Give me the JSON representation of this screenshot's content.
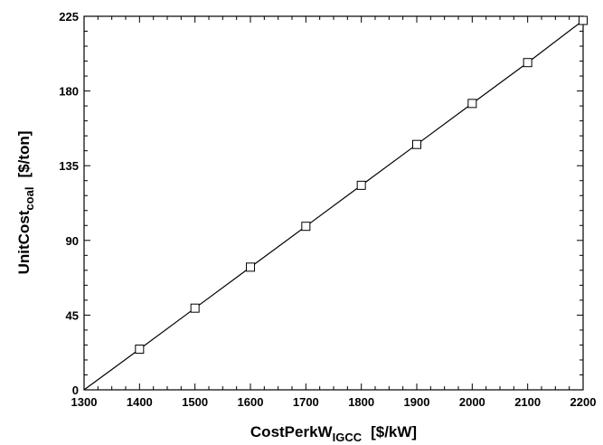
{
  "chart_data": {
    "type": "line",
    "xlabel": "CostPerkW",
    "xlabel_subscript": "IGCC",
    "xlabel_units": "[$/kW]",
    "ylabel": "UnitCost",
    "ylabel_subscript": "coal",
    "ylabel_units": "[$/ton]",
    "xlim": [
      1300,
      2200
    ],
    "ylim": [
      0,
      225
    ],
    "x_ticks": [
      "1300",
      "1400",
      "1500",
      "1600",
      "1700",
      "1800",
      "1900",
      "2000",
      "2100",
      "2200"
    ],
    "y_ticks": [
      "0",
      "45",
      "90",
      "135",
      "180",
      "225"
    ],
    "grid": false,
    "line_color": "#000000",
    "marker": "open-square",
    "series": [
      {
        "x": [
          1300,
          1400,
          1500,
          1600,
          1700,
          1800,
          1900,
          2000,
          2100,
          2200
        ],
        "y": [
          0,
          24.5,
          49.2,
          73.9,
          98.5,
          123.2,
          147.8,
          172.5,
          197.1,
          222.5
        ],
        "markers_at": [
          1400,
          1500,
          1600,
          1700,
          1800,
          1900,
          2000,
          2100,
          2200
        ]
      }
    ]
  }
}
